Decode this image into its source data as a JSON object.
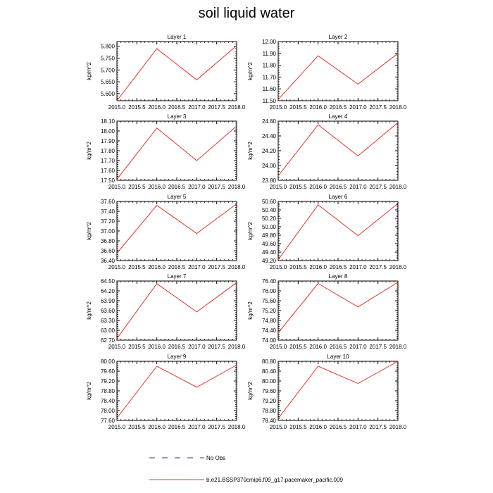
{
  "title": "soil liquid water",
  "colors": {
    "model": "#e8332a",
    "obs": "#1f3a8a",
    "axis": "#000000"
  },
  "legend": {
    "obs_label": "No Obs",
    "model_label": "b.e21.BSSP370cmip6.f09_g17.pacemaker_pacific.009"
  },
  "chart_data": [
    {
      "type": "line",
      "title": "Layer 1",
      "xlabel": "",
      "ylabel": "kg/m^2",
      "x": [
        2015.0,
        2016.0,
        2017.0,
        2018.0
      ],
      "xlim": [
        2015.0,
        2018.0
      ],
      "xticks": [
        "2015.0",
        "2015.5",
        "2016.0",
        "2016.5",
        "2017.0",
        "2017.5",
        "2018.0"
      ],
      "ylim": [
        5.57,
        5.82
      ],
      "yticks": [
        "5.600",
        "5.650",
        "5.700",
        "5.750",
        "5.800"
      ],
      "series": [
        {
          "name": "b.e21.BSSP370cmip6.f09_g17.pacemaker_pacific.009",
          "values": [
            5.57,
            5.79,
            5.658,
            5.803
          ]
        }
      ]
    },
    {
      "type": "line",
      "title": "Layer 2",
      "xlabel": "",
      "ylabel": "kg/m^2",
      "x": [
        2015.0,
        2016.0,
        2017.0,
        2018.0
      ],
      "xlim": [
        2015.0,
        2018.0
      ],
      "xticks": [
        "2015.0",
        "2015.5",
        "2016.0",
        "2016.5",
        "2017.0",
        "2017.5",
        "2018.0"
      ],
      "ylim": [
        11.5,
        12.0
      ],
      "yticks": [
        "11.50",
        "11.60",
        "11.70",
        "11.80",
        "11.90",
        "12.00"
      ],
      "series": [
        {
          "name": "b.e21.BSSP370cmip6.f09_g17.pacemaker_pacific.009",
          "values": [
            11.51,
            11.88,
            11.64,
            11.9
          ]
        }
      ]
    },
    {
      "type": "line",
      "title": "Layer 3",
      "xlabel": "",
      "ylabel": "kg/m^2",
      "x": [
        2015.0,
        2016.0,
        2017.0,
        2018.0
      ],
      "xlim": [
        2015.0,
        2018.0
      ],
      "xticks": [
        "2015.0",
        "2015.5",
        "2016.0",
        "2016.5",
        "2017.0",
        "2017.5",
        "2018.0"
      ],
      "ylim": [
        17.5,
        18.1
      ],
      "yticks": [
        "17.50",
        "17.60",
        "17.70",
        "17.80",
        "17.90",
        "18.00",
        "18.10"
      ],
      "series": [
        {
          "name": "b.e21.BSSP370cmip6.f09_g17.pacemaker_pacific.009",
          "values": [
            17.51,
            18.03,
            17.7,
            18.05
          ]
        }
      ]
    },
    {
      "type": "line",
      "title": "Layer 4",
      "xlabel": "",
      "ylabel": "kg/m^2",
      "x": [
        2015.0,
        2016.0,
        2017.0,
        2018.0
      ],
      "xlim": [
        2015.0,
        2018.0
      ],
      "xticks": [
        "2015.0",
        "2015.5",
        "2016.0",
        "2016.5",
        "2017.0",
        "2017.5",
        "2018.0"
      ],
      "ylim": [
        23.8,
        24.6
      ],
      "yticks": [
        "23.80",
        "24.00",
        "24.20",
        "24.40",
        "24.60"
      ],
      "series": [
        {
          "name": "b.e21.BSSP370cmip6.f09_g17.pacemaker_pacific.009",
          "values": [
            23.86,
            24.55,
            24.13,
            24.58
          ]
        }
      ]
    },
    {
      "type": "line",
      "title": "Layer 5",
      "xlabel": "",
      "ylabel": "kg/m^2",
      "x": [
        2015.0,
        2016.0,
        2017.0,
        2018.0
      ],
      "xlim": [
        2015.0,
        2018.0
      ],
      "xticks": [
        "2015.0",
        "2015.5",
        "2016.0",
        "2016.5",
        "2017.0",
        "2017.5",
        "2018.0"
      ],
      "ylim": [
        36.4,
        37.6
      ],
      "yticks": [
        "36.40",
        "36.60",
        "36.80",
        "37.00",
        "37.20",
        "37.40",
        "37.60"
      ],
      "series": [
        {
          "name": "b.e21.BSSP370cmip6.f09_g17.pacemaker_pacific.009",
          "values": [
            36.55,
            37.52,
            36.95,
            37.55
          ]
        }
      ]
    },
    {
      "type": "line",
      "title": "Layer 6",
      "xlabel": "",
      "ylabel": "kg/m^2",
      "x": [
        2015.0,
        2016.0,
        2017.0,
        2018.0
      ],
      "xlim": [
        2015.0,
        2018.0
      ],
      "xticks": [
        "2015.0",
        "2015.5",
        "2016.0",
        "2016.5",
        "2017.0",
        "2017.5",
        "2018.0"
      ],
      "ylim": [
        49.2,
        50.6
      ],
      "yticks": [
        "49.20",
        "49.40",
        "49.60",
        "49.80",
        "50.00",
        "50.20",
        "50.40",
        "50.60"
      ],
      "series": [
        {
          "name": "b.e21.BSSP370cmip6.f09_g17.pacemaker_pacific.009",
          "values": [
            49.22,
            50.52,
            49.79,
            50.55
          ]
        }
      ]
    },
    {
      "type": "line",
      "title": "Layer 7",
      "xlabel": "",
      "ylabel": "kg/m^2",
      "x": [
        2015.0,
        2016.0,
        2017.0,
        2018.0
      ],
      "xlim": [
        2015.0,
        2018.0
      ],
      "xticks": [
        "2015.0",
        "2015.5",
        "2016.0",
        "2016.5",
        "2017.0",
        "2017.5",
        "2018.0"
      ],
      "ylim": [
        62.7,
        64.5
      ],
      "yticks": [
        "62.70",
        "63.00",
        "63.30",
        "63.60",
        "63.90",
        "64.20",
        "64.50"
      ],
      "series": [
        {
          "name": "b.e21.BSSP370cmip6.f09_g17.pacemaker_pacific.009",
          "values": [
            62.75,
            64.42,
            63.56,
            64.45
          ]
        }
      ]
    },
    {
      "type": "line",
      "title": "Layer 8",
      "xlabel": "",
      "ylabel": "kg/m^2",
      "x": [
        2015.0,
        2016.0,
        2017.0,
        2018.0
      ],
      "xlim": [
        2015.0,
        2018.0
      ],
      "xticks": [
        "2015.0",
        "2015.5",
        "2016.0",
        "2016.5",
        "2017.0",
        "2017.5",
        "2018.0"
      ],
      "ylim": [
        74.0,
        76.4
      ],
      "yticks": [
        "74.00",
        "74.40",
        "74.80",
        "75.20",
        "75.60",
        "76.00",
        "76.40"
      ],
      "series": [
        {
          "name": "b.e21.BSSP370cmip6.f09_g17.pacemaker_pacific.009",
          "values": [
            74.3,
            76.3,
            75.35,
            76.35
          ]
        }
      ]
    },
    {
      "type": "line",
      "title": "Layer 9",
      "xlabel": "",
      "ylabel": "kg/m^2",
      "x": [
        2015.0,
        2016.0,
        2017.0,
        2018.0
      ],
      "xlim": [
        2015.0,
        2018.0
      ],
      "xticks": [
        "2015.0",
        "2015.5",
        "2016.0",
        "2016.5",
        "2017.0",
        "2017.5",
        "2018.0"
      ],
      "ylim": [
        77.6,
        80.0
      ],
      "yticks": [
        "77.60",
        "78.00",
        "78.40",
        "78.80",
        "79.20",
        "79.60",
        "80.00"
      ],
      "series": [
        {
          "name": "b.e21.BSSP370cmip6.f09_g17.pacemaker_pacific.009",
          "values": [
            77.7,
            79.8,
            78.95,
            79.85
          ]
        }
      ]
    },
    {
      "type": "line",
      "title": "Layer 10",
      "xlabel": "",
      "ylabel": "kg/m^2",
      "x": [
        2015.0,
        2016.0,
        2017.0,
        2018.0
      ],
      "xlim": [
        2015.0,
        2018.0
      ],
      "xticks": [
        "2015.0",
        "2015.5",
        "2016.0",
        "2016.5",
        "2017.0",
        "2017.5",
        "2018.0"
      ],
      "ylim": [
        78.4,
        80.8
      ],
      "yticks": [
        "78.40",
        "78.80",
        "79.20",
        "79.60",
        "80.00",
        "80.40",
        "80.80"
      ],
      "series": [
        {
          "name": "b.e21.BSSP370cmip6.f09_g17.pacemaker_pacific.009",
          "values": [
            78.48,
            80.6,
            79.9,
            80.8
          ]
        }
      ]
    }
  ]
}
